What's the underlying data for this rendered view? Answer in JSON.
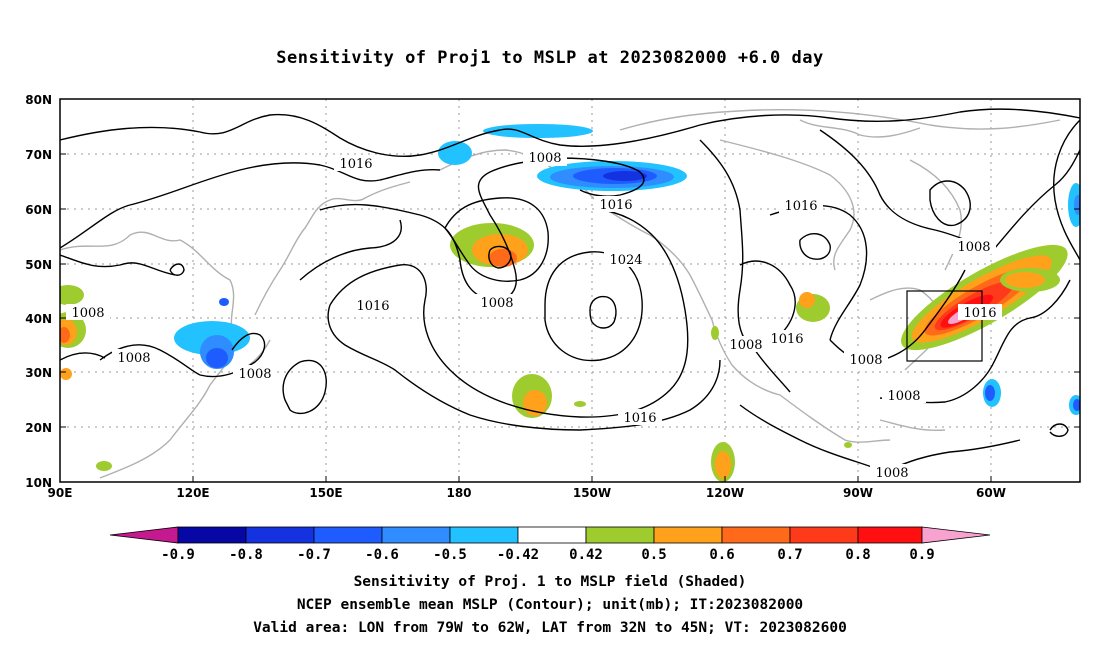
{
  "title": "Sensitivity of Proj1 to MSLP at 2023082000 +6.0 day",
  "map": {
    "lat_labels": [
      "80N",
      "70N",
      "60N",
      "50N",
      "40N",
      "30N",
      "20N",
      "10N"
    ],
    "lon_labels": [
      "90E",
      "120E",
      "150E",
      "180",
      "150W",
      "120W",
      "90W",
      "60W"
    ],
    "contour_labels": [
      "1016",
      "1008",
      "1016",
      "1016",
      "1024",
      "1008",
      "1016",
      "1008",
      "1008",
      "1008",
      "1016",
      "1008",
      "1008",
      "1016",
      "1008",
      "1008"
    ],
    "valid_box": {
      "lon": [
        "79W",
        "62W"
      ],
      "lat": [
        "32N",
        "45N"
      ]
    }
  },
  "colorbar": {
    "labels": [
      "-0.9",
      "-0.8",
      "-0.7",
      "-0.6",
      "-0.5",
      "-0.42",
      "0.42",
      "0.5",
      "0.6",
      "0.7",
      "0.8",
      "0.9"
    ],
    "colors": [
      "#c4198f",
      "#0707a6",
      "#1432e0",
      "#1f5cff",
      "#2f8dff",
      "#22c1ff",
      "#ffffff",
      "#9ecb2e",
      "#ffa11a",
      "#ff6a1a",
      "#ff3a1a",
      "#ff0f0f",
      "#f7a2cf"
    ]
  },
  "footer": {
    "line1": "Sensitivity of Proj. 1 to MSLP field (Shaded)",
    "line2": "NCEP ensemble mean MSLP (Contour); unit(mb); IT:2023082000",
    "line3": "Valid area: LON from 79W to 62W, LAT from 32N to 45N; VT: 2023082600"
  }
}
